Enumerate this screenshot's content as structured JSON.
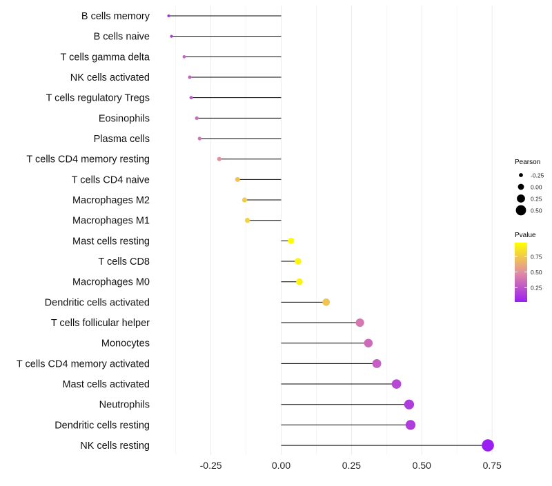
{
  "chart_data": {
    "type": "lollipop",
    "title": "",
    "xlabel": "",
    "ylabel": "",
    "xlim": [
      -0.4,
      0.77
    ],
    "x_ticks": [
      -0.25,
      0.0,
      0.25,
      0.5,
      0.75
    ],
    "x_tick_labels": [
      "-0.25",
      "0.00",
      "0.25",
      "0.50",
      "0.75"
    ],
    "grid": "vertical",
    "categories": [
      "B cells memory",
      "B cells naive",
      "T cells gamma delta",
      "NK cells activated",
      "T cells regulatory  Tregs",
      "Eosinophils",
      "Plasma cells",
      "T cells CD4 memory resting",
      "T cells CD4 naive",
      "Macrophages M2",
      "Macrophages M1",
      "Mast cells resting",
      "T cells CD8",
      "Macrophages M0",
      "Dendritic cells activated",
      "T cells follicular helper",
      "Monocytes",
      "T cells CD4 memory activated",
      "Mast cells activated",
      "Neutrophils",
      "Dendritic cells resting",
      "NK cells resting"
    ],
    "pearson": [
      -0.4,
      -0.39,
      -0.345,
      -0.325,
      -0.32,
      -0.3,
      -0.29,
      -0.22,
      -0.155,
      -0.13,
      -0.12,
      0.035,
      0.06,
      0.065,
      0.16,
      0.28,
      0.31,
      0.34,
      0.41,
      0.455,
      0.46,
      0.735
    ],
    "pvalue": [
      0.1,
      0.12,
      0.32,
      0.3,
      0.28,
      0.35,
      0.38,
      0.5,
      0.72,
      0.75,
      0.78,
      0.97,
      0.93,
      0.92,
      0.72,
      0.4,
      0.35,
      0.3,
      0.2,
      0.15,
      0.15,
      0.02
    ],
    "legend_size": {
      "title": "Pearson",
      "labels": [
        "-0.25",
        "0.00",
        "0.25",
        "0.50"
      ],
      "values": [
        -0.25,
        0.0,
        0.25,
        0.5
      ]
    },
    "legend_color": {
      "title": "Pvalue",
      "labels": [
        "0.75",
        "0.50",
        "0.25"
      ],
      "values": [
        0.75,
        0.5,
        0.25
      ],
      "range": [
        0.02,
        0.97
      ],
      "low_color": "#9B1FF2",
      "mid_color": "#E28EA0",
      "high_color": "#FFFF00"
    },
    "legend_position": "right"
  }
}
